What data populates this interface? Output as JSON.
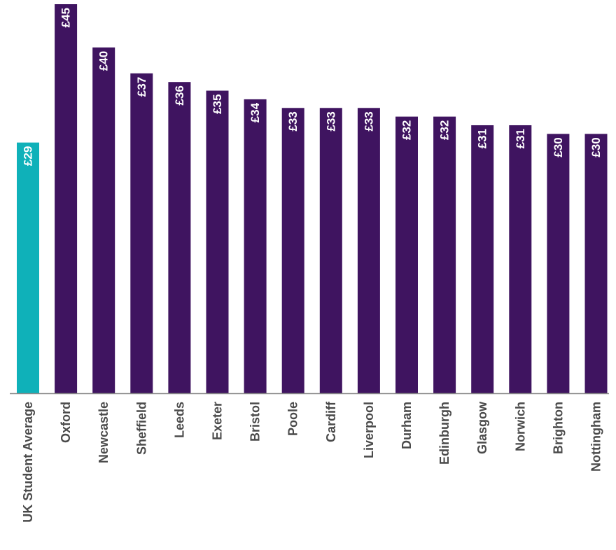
{
  "chart_data": {
    "type": "bar",
    "title": "",
    "xlabel": "",
    "ylabel": "",
    "ylim": [
      0,
      45
    ],
    "grid": false,
    "legend": "none",
    "currency_symbol": "£",
    "categories": [
      "UK Student Average",
      "Oxford",
      "Newcastle",
      "Sheffield",
      "Leeds",
      "Exeter",
      "Bristol",
      "Poole",
      "Cardiff",
      "Liverpool",
      "Durham",
      "Edinburgh",
      "Glasgow",
      "Norwich",
      "Brighton",
      "Nottingham"
    ],
    "values": [
      29,
      45,
      40,
      37,
      36,
      35,
      34,
      33,
      33,
      33,
      32,
      32,
      31,
      31,
      30,
      30
    ],
    "value_labels": [
      "£29",
      "£45",
      "£40",
      "£37",
      "£36",
      "£35",
      "£34",
      "£33",
      "£33",
      "£33",
      "£32",
      "£32",
      "£31",
      "£31",
      "£30",
      "£30"
    ],
    "colors": {
      "highlight": "#0fb1b9",
      "bar": "#3f1460",
      "axis": "#8a8a8a",
      "label_text": "#4a4a4a",
      "value_text": "#ffffff"
    },
    "highlight_index": 0
  }
}
